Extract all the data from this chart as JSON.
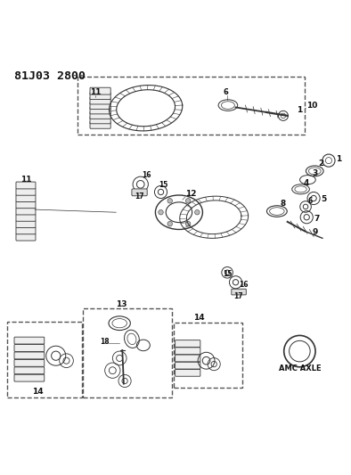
{
  "title": "81J03 2800",
  "background_color": "#ffffff",
  "text_color": "#222222",
  "figsize": [
    3.94,
    5.33
  ],
  "dpi": 100
}
